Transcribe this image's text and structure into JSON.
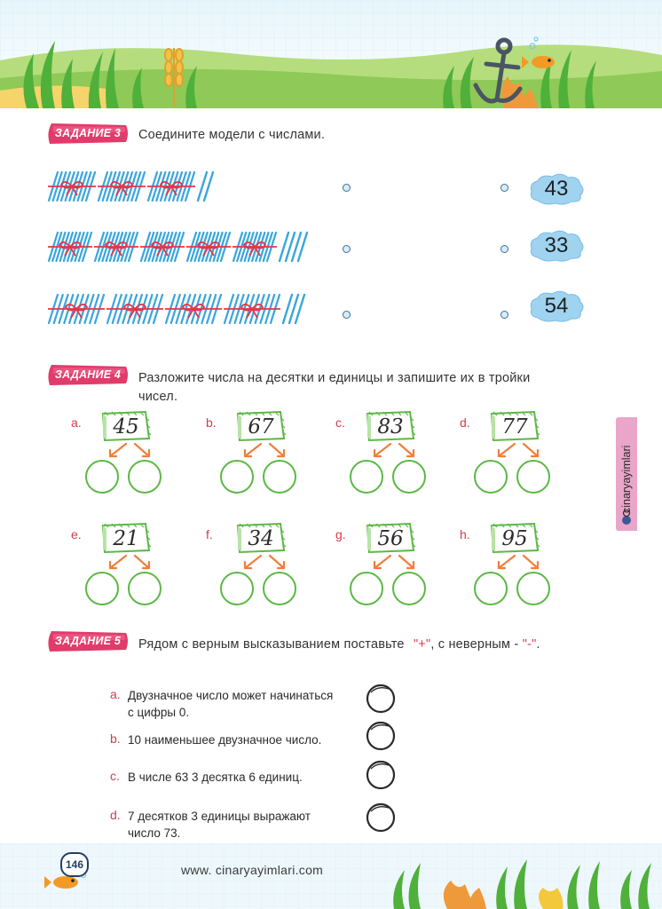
{
  "brand": {
    "handle": "cinaryayimlari"
  },
  "task3": {
    "badge": "ЗАДАНИЕ 3",
    "instruction": "Соедините модели с числами.",
    "rows": [
      {
        "tens": 3,
        "ones": 2
      },
      {
        "tens": 5,
        "ones": 4
      },
      {
        "tens": 4,
        "ones": 3
      }
    ],
    "numbers": [
      "43",
      "33",
      "54"
    ]
  },
  "task4": {
    "badge": "ЗАДАНИЕ 4",
    "instruction_line1": "Разложите числа на десятки и единицы и запишите их в тройки",
    "instruction_line2": "чисел.",
    "items": [
      {
        "letter": "a.",
        "number": "45"
      },
      {
        "letter": "b.",
        "number": "67"
      },
      {
        "letter": "c.",
        "number": "83"
      },
      {
        "letter": "d.",
        "number": "77"
      },
      {
        "letter": "e.",
        "number": "21"
      },
      {
        "letter": "f.",
        "number": "34"
      },
      {
        "letter": "g.",
        "number": "56"
      },
      {
        "letter": "h.",
        "number": "95"
      }
    ]
  },
  "task5": {
    "badge": "ЗАДАНИЕ 5",
    "instruction_part1": "Рядом с верным высказыванием поставьте",
    "plus": "\"+\"",
    "instruction_part2": ", с неверным -",
    "minus": "\"-\"",
    "instruction_end": ".",
    "statements": [
      {
        "letter": "a.",
        "line1": "Двузначное число может начинаться",
        "line2": "с цифры 0."
      },
      {
        "letter": "b.",
        "line1": "10 наименьшее двузначное число.",
        "line2": ""
      },
      {
        "letter": "c.",
        "line1": "В числе 63 3 десятка 6 единиц.",
        "line2": ""
      },
      {
        "letter": "d.",
        "line1": "7 десятков 3 единицы выражают",
        "line2": "число 73."
      }
    ]
  },
  "footer": {
    "page_number": "146",
    "website": "www. cinaryayimlari.com"
  },
  "colors": {
    "accent_red": "#d83a4a",
    "circle_green": "#5cb845",
    "stick_blue": "#3aa6dc",
    "badge_pink": "#e23b6b",
    "brand_tab": "#e9a6c9"
  }
}
